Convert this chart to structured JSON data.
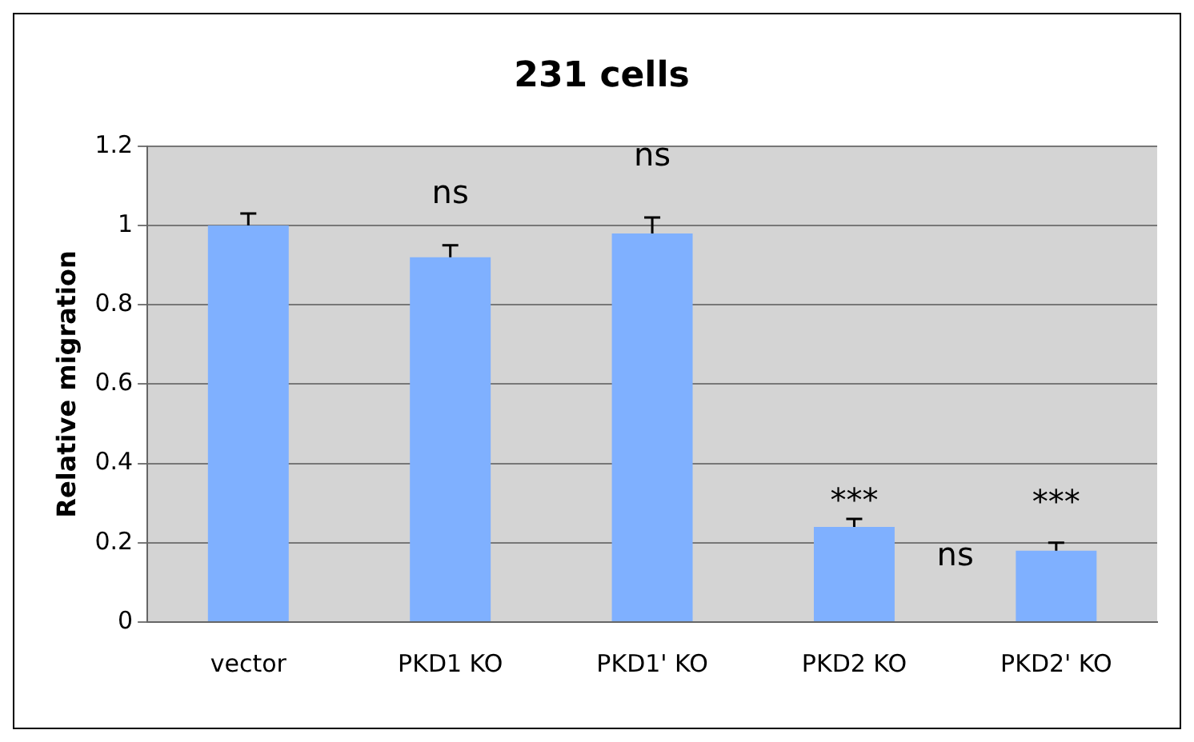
{
  "chart_data": {
    "type": "bar",
    "title": "231 cells",
    "ylabel": "Relative migration",
    "categories": [
      "vector",
      "PKD1 KO",
      "PKD1' KO",
      "PKD2 KO",
      "PKD2' KO"
    ],
    "values": [
      1.0,
      0.92,
      0.98,
      0.24,
      0.18
    ],
    "errors": [
      [
        1.0,
        1.03
      ],
      [
        0.92,
        0.95
      ],
      [
        0.98,
        1.02
      ],
      [
        0.24,
        0.26
      ],
      [
        0.18,
        0.2
      ]
    ],
    "color": "#7fb0ff",
    "ylim": [
      0,
      1.2
    ],
    "yticks": [
      0,
      0.2,
      0.4,
      0.6,
      0.8,
      1,
      1.2
    ],
    "grid": "y",
    "legend": false,
    "annotations": [
      "ns",
      "ns",
      {
        "text": "***",
        "x": "PKD2 KO",
        "y": 0.28
      },
      "***",
      "ns"
    ]
  }
}
